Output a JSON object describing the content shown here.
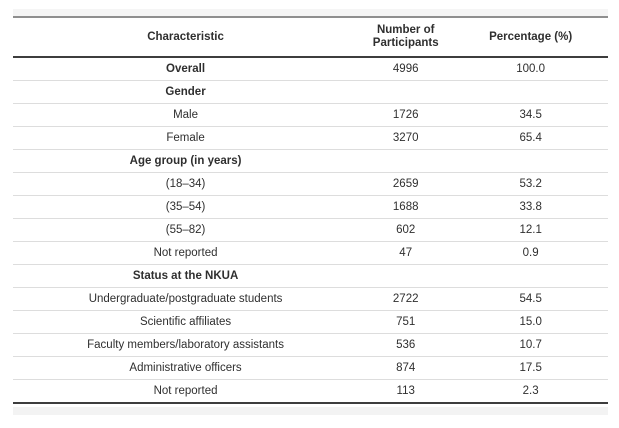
{
  "table": {
    "columns": [
      {
        "label": "Characteristic"
      },
      {
        "label": "Number of Participants"
      },
      {
        "label": "Percentage (%)"
      }
    ],
    "rows": [
      {
        "label": "Overall",
        "n": "4996",
        "pct": "100.0",
        "bold": true
      },
      {
        "label": "Gender",
        "n": "",
        "pct": "",
        "bold": true
      },
      {
        "label": "Male",
        "n": "1726",
        "pct": "34.5",
        "bold": false
      },
      {
        "label": "Female",
        "n": "3270",
        "pct": "65.4",
        "bold": false
      },
      {
        "label": "Age group (in years)",
        "n": "",
        "pct": "",
        "bold": true
      },
      {
        "label": "(18–34)",
        "n": "2659",
        "pct": "53.2",
        "bold": false
      },
      {
        "label": "(35–54)",
        "n": "1688",
        "pct": "33.8",
        "bold": false
      },
      {
        "label": "(55–82)",
        "n": "602",
        "pct": "12.1",
        "bold": false
      },
      {
        "label": "Not reported",
        "n": "47",
        "pct": "0.9",
        "bold": false
      },
      {
        "label": "Status at the NKUA",
        "n": "",
        "pct": "",
        "bold": true
      },
      {
        "label": "Undergraduate/postgraduate students",
        "n": "2722",
        "pct": "54.5",
        "bold": false
      },
      {
        "label": "Scientific affiliates",
        "n": "751",
        "pct": "15.0",
        "bold": false
      },
      {
        "label": "Faculty members/laboratory assistants",
        "n": "536",
        "pct": "10.7",
        "bold": false
      },
      {
        "label": "Administrative officers",
        "n": "874",
        "pct": "17.5",
        "bold": false
      },
      {
        "label": "Not reported",
        "n": "113",
        "pct": "2.3",
        "bold": false
      }
    ]
  },
  "colors": {
    "dark_border": "#3d3d3d",
    "top_rule": "#8f8f8f",
    "row_border": "#dddddd",
    "text": "#2f2f2f",
    "strip_background": "#f5f5f5"
  }
}
